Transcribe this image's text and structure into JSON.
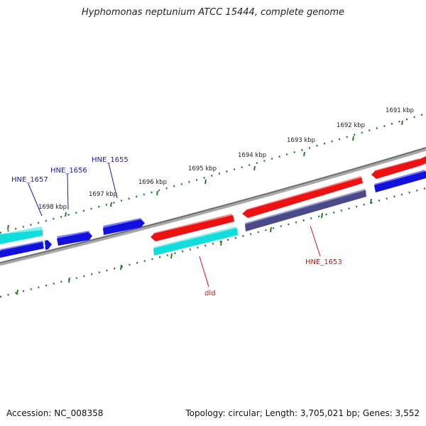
{
  "title": "Hyphomonas neptunium ATCC 15444, complete genome",
  "footer": {
    "accession": "Accession: NC_008358",
    "summary": "Topology: circular; Length: 3,705,021 bp; Genes: 3,552"
  },
  "colors": {
    "background": "#ffffff",
    "backbone": "#808080",
    "tick": "#2d7a2d",
    "forward_gene": "#ee1111",
    "forward_cds_alt": "#1111dd",
    "reverse_cyan": "#11dddd",
    "reverse_blue": "#1111dd",
    "reverse_slate": "#4a4a8a",
    "label_blue": "#1a1aa8",
    "label_red": "#cc1111",
    "scale_text": "#222222"
  },
  "scale_labels": [
    "1691 kbp",
    "1692 kbp",
    "1693 kbp",
    "1694 kbp",
    "1695 kbp",
    "1696 kbp",
    "1697 kbp",
    "1698 kbp"
  ],
  "gene_labels": [
    "HNE_1657",
    "HNE_1656",
    "HNE_1655",
    "dld",
    "HNE_1653"
  ]
}
